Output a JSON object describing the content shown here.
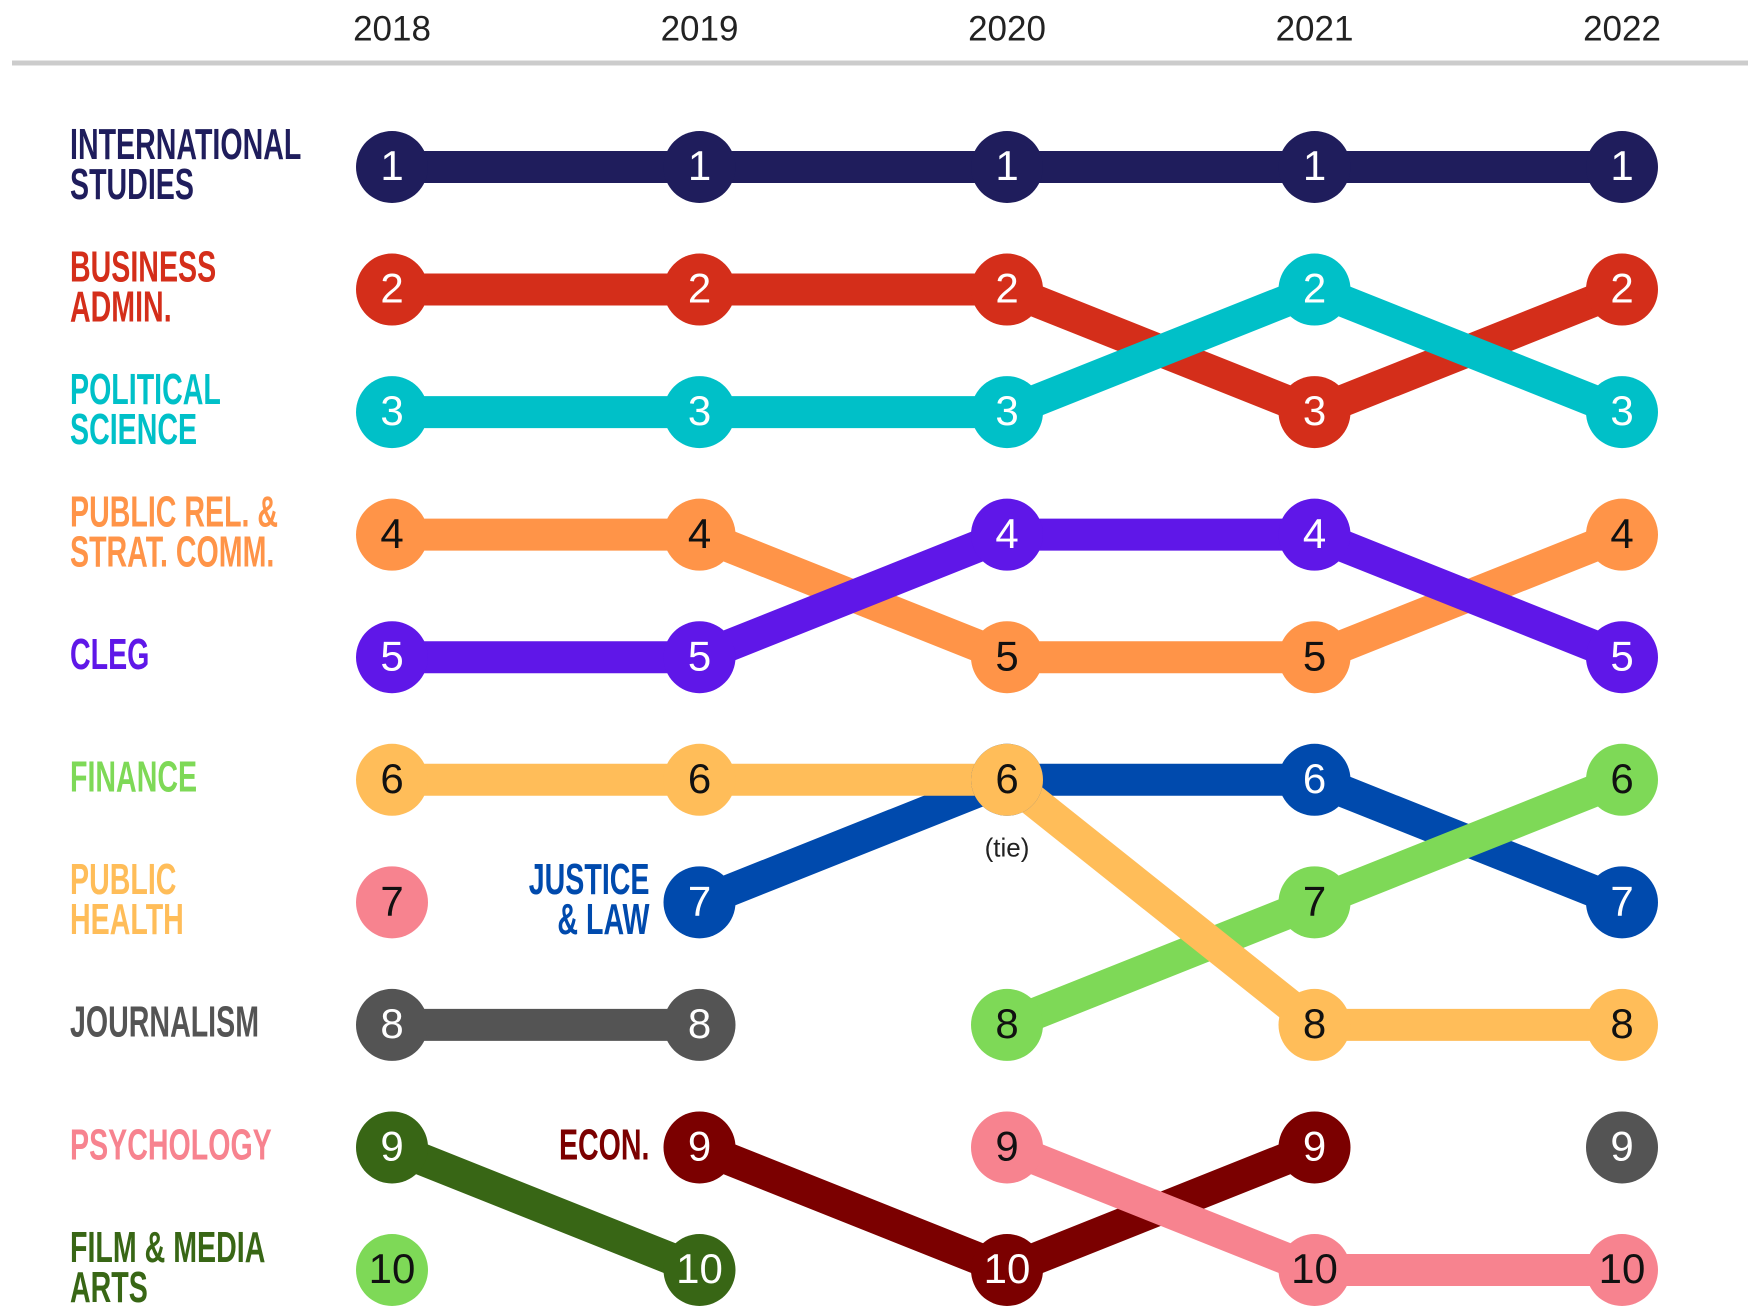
{
  "chart_data": {
    "type": "bump",
    "categories": [
      "2018",
      "2019",
      "2020",
      "2021",
      "2022"
    ],
    "ylim": [
      1,
      10
    ],
    "inverted": true,
    "series": [
      {
        "name": "INTERNATIONAL\nSTUDIES",
        "color": "#1f1d5c",
        "values": [
          1,
          1,
          1,
          1,
          1
        ]
      },
      {
        "name": "BUSINESS\nADMIN.",
        "color": "#d42e1a",
        "values": [
          2,
          2,
          2,
          3,
          2
        ]
      },
      {
        "name": "POLITICAL\nSCIENCE",
        "color": "#00c0c8",
        "values": [
          3,
          3,
          3,
          2,
          3
        ]
      },
      {
        "name": "PUBLIC REL. &\nSTRAT. COMM.",
        "color": "#ff9448",
        "values": [
          4,
          4,
          5,
          5,
          4
        ]
      },
      {
        "name": "CLEG",
        "color": "#5f17e8",
        "values": [
          5,
          5,
          4,
          4,
          5
        ]
      },
      {
        "name": "JUSTICE\n& LAW",
        "color": "#004aad",
        "values": [
          null,
          7,
          6,
          6,
          7
        ]
      },
      {
        "name": "ECON.",
        "color": "#7b0000",
        "values": [
          null,
          9,
          10,
          9,
          null
        ]
      },
      {
        "name": "FINANCE",
        "color": "#7ed957",
        "values": [
          10,
          null,
          8,
          7,
          6
        ]
      },
      {
        "name": "PUBLIC\nHEALTH",
        "color": "#ffbd59",
        "values": [
          6,
          6,
          6,
          8,
          8
        ]
      },
      {
        "name": "JOURNALISM",
        "color": "#545454",
        "values": [
          8,
          8,
          null,
          null,
          9
        ]
      },
      {
        "name": "PSYCHOLOGY",
        "color": "#f7838f",
        "values": [
          7,
          null,
          9,
          10,
          10
        ]
      },
      {
        "name": "FILM & MEDIA\nARTS",
        "color": "#386615",
        "values": [
          9,
          10,
          null,
          null,
          null
        ]
      }
    ],
    "annotations": [
      {
        "text": "(tie)",
        "x": "2020",
        "y": 6
      }
    ]
  }
}
